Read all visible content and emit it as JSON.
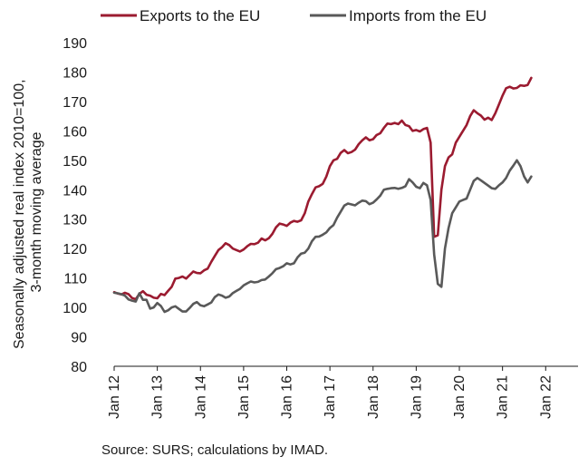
{
  "chart_data": {
    "type": "line",
    "ylabel_lines": [
      "Seasonally adjusted real index 2010=100,",
      "3-month moving average"
    ],
    "ylim": [
      80,
      190
    ],
    "yticks": [
      80,
      90,
      100,
      110,
      120,
      130,
      140,
      150,
      160,
      170,
      180,
      190
    ],
    "xlim": [
      0,
      129
    ],
    "xtick_labels": [
      "Jan 12",
      "Jan 13",
      "Jan 14",
      "Jan 15",
      "Jan 16",
      "Jan 17",
      "Jan 18",
      "Jan 19",
      "Jan 20",
      "Jan 21",
      "Jan 22"
    ],
    "legend_position": "top",
    "grid": false,
    "source": "Source: SURS; calculations by IMAD.",
    "series": [
      {
        "name": "Exports to the EU",
        "color": "#9b1b30",
        "values": [
          105.2,
          104.7,
          104.4,
          105.0,
          104.5,
          103.2,
          102.8,
          104.6,
          105.5,
          104.3,
          104.0,
          103.3,
          103.1,
          104.6,
          104.2,
          105.6,
          107.0,
          109.8,
          110.0,
          110.5,
          109.8,
          111.0,
          112.2,
          111.7,
          111.6,
          112.6,
          113.2,
          115.5,
          117.5,
          119.5,
          120.5,
          121.8,
          121.2,
          120.0,
          119.5,
          119.0,
          119.7,
          120.8,
          121.6,
          121.5,
          122.0,
          123.4,
          122.8,
          123.5,
          125.0,
          127.2,
          128.5,
          128.2,
          127.7,
          128.8,
          129.4,
          129.1,
          129.6,
          132.0,
          136.0,
          138.5,
          140.8,
          141.2,
          142.0,
          144.5,
          148.0,
          150.0,
          150.5,
          152.5,
          153.5,
          152.4,
          152.8,
          153.6,
          155.5,
          156.8,
          157.8,
          156.8,
          157.2,
          158.6,
          159.2,
          161.0,
          162.5,
          162.3,
          162.7,
          162.3,
          163.5,
          162.0,
          161.6,
          160.0,
          160.3,
          159.8,
          160.6,
          161.0,
          156.0,
          124.0,
          124.5,
          140.0,
          148.0,
          151.0,
          152.0,
          156.0,
          158.0,
          160.0,
          162.0,
          165.0,
          167.0,
          166.0,
          165.2,
          163.8,
          164.5,
          163.7,
          166.0,
          169.0,
          172.0,
          174.5,
          175.0,
          174.4,
          174.6,
          175.5,
          175.3,
          175.6,
          178.0
        ]
      },
      {
        "name": "Imports from the EU",
        "color": "#595959",
        "values": [
          105.0,
          104.8,
          104.5,
          104.0,
          102.7,
          102.3,
          102.0,
          104.8,
          102.6,
          102.6,
          99.6,
          100.0,
          101.5,
          100.5,
          98.5,
          99.0,
          100.0,
          100.4,
          99.5,
          98.6,
          98.6,
          99.8,
          101.2,
          101.8,
          100.7,
          100.4,
          101.0,
          101.7,
          103.5,
          104.4,
          104.0,
          103.3,
          103.7,
          104.9,
          105.6,
          106.3,
          107.5,
          108.2,
          108.8,
          108.5,
          108.7,
          109.3,
          109.5,
          110.5,
          111.6,
          113.0,
          113.4,
          114.0,
          115.0,
          114.6,
          115.0,
          117.0,
          118.3,
          118.6,
          120.0,
          122.5,
          124.0,
          124.1,
          124.7,
          125.5,
          127.0,
          128.0,
          130.5,
          132.5,
          134.6,
          135.3,
          135.0,
          134.7,
          135.6,
          136.3,
          136.1,
          135.1,
          135.6,
          136.7,
          138.0,
          140.0,
          140.3,
          140.5,
          140.6,
          140.3,
          140.6,
          141.2,
          143.6,
          142.5,
          141.0,
          140.5,
          142.3,
          141.5,
          136.5,
          118.0,
          108.0,
          107.0,
          120.0,
          127.0,
          132.0,
          134.0,
          136.0,
          136.5,
          137.0,
          140.0,
          143.0,
          144.0,
          143.2,
          142.3,
          141.4,
          140.5,
          140.3,
          141.5,
          142.5,
          144.0,
          146.5,
          148.2,
          150.0,
          148.0,
          144.5,
          142.5,
          144.5
        ]
      }
    ]
  }
}
